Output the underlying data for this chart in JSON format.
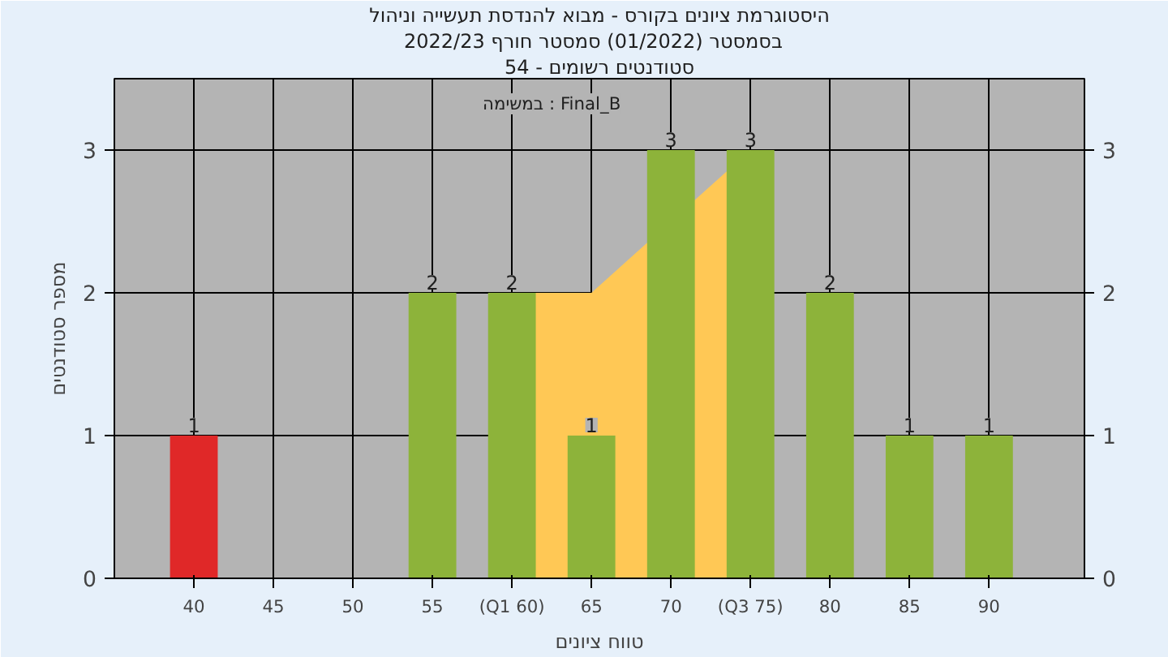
{
  "chart_data": {
    "type": "bar",
    "title": "היסטוגרמת ציונים בקורס - מבוא להנדסת תעשייה וניהול",
    "subtitle": [
      "בסמסטר  (01/2022)  סמסטר חורף 2022/23",
      "סטודנטים רשומים - 54"
    ],
    "xlabel": "טווח ציונים",
    "ylabel": "מספר סטודנטים",
    "annotations": [
      "במשימה : Final_B"
    ],
    "categories": [
      "40",
      "45",
      "50",
      "55",
      "(Q1 60)",
      "65",
      "70",
      "(Q3 75)",
      "80",
      "85",
      "90"
    ],
    "series": [
      {
        "type": "area",
        "color": "#ffc855",
        "values": [
          null,
          null,
          null,
          null,
          2,
          2,
          null,
          3,
          null,
          null,
          null
        ]
      },
      {
        "colors": [
          "#e02828",
          "#8db33a",
          "#8db33a",
          "#8db33a",
          "#8db33a",
          "#8db33a",
          "#8db33a",
          "#8db33a",
          "#8db33a",
          "#8db33a",
          "#8db33a"
        ],
        "values": [
          1,
          0,
          0,
          2,
          2,
          1,
          3,
          3,
          2,
          1,
          1
        ],
        "value_labels": [
          "1",
          null,
          null,
          "2",
          "2",
          "1",
          "3",
          "3",
          "2",
          "1",
          "1"
        ]
      }
    ],
    "ylim": [
      0,
      3.5
    ],
    "yticks": [
      0,
      1,
      2,
      3
    ],
    "y2lim": [
      0,
      3.5
    ],
    "y2ticks": [
      0,
      1,
      2,
      3
    ],
    "grid": true
  }
}
